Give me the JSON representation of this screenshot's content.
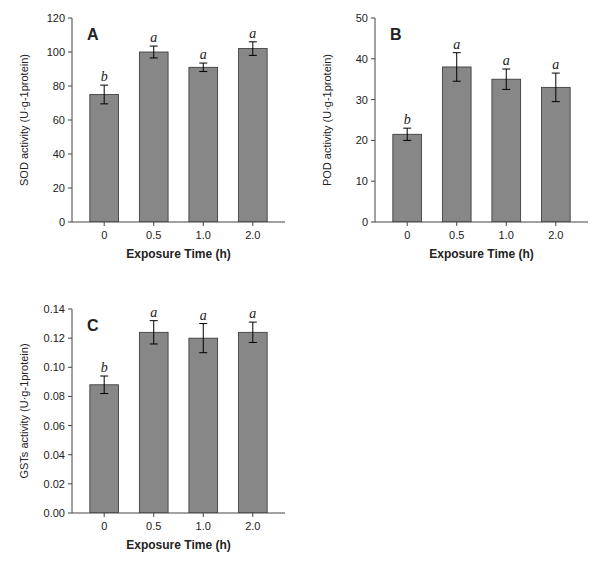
{
  "chart_data": [
    {
      "type": "bar",
      "title": "A",
      "categories": [
        "0",
        "0.5",
        "1.0",
        "2.0"
      ],
      "values": [
        75,
        100,
        91,
        102
      ],
      "errors": [
        5.5,
        3.5,
        2.5,
        4.0
      ],
      "annotations": [
        "b",
        "a",
        "a",
        "a"
      ],
      "x_label": "Exposure Time (h)",
      "y_label": "SOD activity (U·g-1protein)",
      "ylim": [
        0,
        120
      ],
      "yticks": [
        0,
        20,
        40,
        60,
        80,
        100,
        120
      ],
      "color": "#878787",
      "grid": false
    },
    {
      "type": "bar",
      "title": "B",
      "categories": [
        "0",
        "0.5",
        "1.0",
        "2.0"
      ],
      "values": [
        21.5,
        38,
        35,
        33
      ],
      "errors": [
        1.5,
        3.5,
        2.5,
        3.5
      ],
      "annotations": [
        "b",
        "a",
        "a",
        "a"
      ],
      "x_label": "Exposure Time (h)",
      "y_label": "POD activity (U·g-1protein)",
      "ylim": [
        0,
        50
      ],
      "yticks": [
        0,
        10,
        20,
        30,
        40,
        50
      ],
      "color": "#878787",
      "grid": false
    },
    {
      "type": "bar",
      "title": "C",
      "categories": [
        "0",
        "0.5",
        "1.0",
        "2.0"
      ],
      "values": [
        0.088,
        0.124,
        0.12,
        0.124
      ],
      "errors": [
        0.006,
        0.008,
        0.01,
        0.007
      ],
      "annotations": [
        "b",
        "a",
        "a",
        "a"
      ],
      "x_label": "Exposure Time (h)",
      "y_label": "GSTs activity (U·g-1protein)",
      "ylim": [
        0,
        0.14
      ],
      "yticks": [
        {
          "value": 0,
          "label": "0.00"
        },
        {
          "value": 0.02,
          "label": "0.02"
        },
        {
          "value": 0.04,
          "label": "0.04"
        },
        {
          "value": 0.06,
          "label": "0.06"
        },
        {
          "value": 0.08,
          "label": "0.08"
        },
        {
          "value": 0.1,
          "label": "0.10"
        },
        {
          "value": 0.12,
          "label": "0.12"
        },
        {
          "value": 0.14,
          "label": "0.14"
        }
      ],
      "color": "#878787",
      "grid": false
    }
  ]
}
